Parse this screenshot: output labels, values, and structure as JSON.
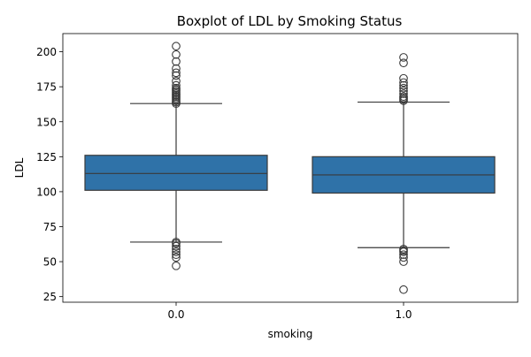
{
  "chart_data": {
    "type": "box",
    "title": "Boxplot of LDL by Smoking Status",
    "xlabel": "smoking",
    "ylabel": "LDL",
    "ylim": [
      21,
      213
    ],
    "yticks": [
      25,
      50,
      75,
      100,
      125,
      150,
      175,
      200
    ],
    "grid": false,
    "box_color": "#2f72a8",
    "line_color": "#3a3a3a",
    "categories": [
      "0.0",
      "1.0"
    ],
    "boxes": [
      {
        "category": "0.0",
        "whisker_low": 64,
        "q1": 101,
        "median": 113,
        "q3": 126,
        "whisker_high": 163,
        "outliers": [
          47,
          53,
          55,
          57,
          59,
          61,
          63,
          64,
          163,
          164,
          165,
          166,
          167,
          168,
          169,
          170,
          171,
          172,
          173,
          174,
          176,
          179,
          183,
          185,
          188,
          193,
          198,
          204
        ]
      },
      {
        "category": "1.0",
        "whisker_low": 60,
        "q1": 99,
        "median": 112,
        "q3": 125,
        "whisker_high": 164,
        "outliers": [
          30,
          50,
          53,
          55,
          57,
          58,
          59,
          165,
          166,
          167,
          168,
          170,
          172,
          174,
          176,
          178,
          181,
          192,
          196
        ]
      }
    ]
  }
}
